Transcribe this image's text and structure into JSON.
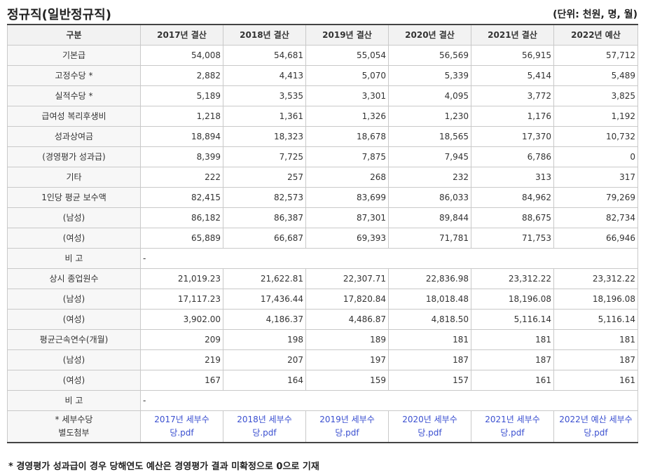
{
  "header": {
    "title": "정규직(일반정규직)",
    "unit": "(단위: 천원, 명, 월)"
  },
  "table": {
    "columns": [
      "구분",
      "2017년 결산",
      "2018년 결산",
      "2019년 결산",
      "2020년 결산",
      "2021년 결산",
      "2022년 예산"
    ],
    "rows": [
      {
        "label": "기본급",
        "values": [
          "54,008",
          "54,681",
          "55,054",
          "56,569",
          "56,915",
          "57,712"
        ]
      },
      {
        "label": "고정수당 *",
        "values": [
          "2,882",
          "4,413",
          "5,070",
          "5,339",
          "5,414",
          "5,489"
        ]
      },
      {
        "label": "실적수당 *",
        "values": [
          "5,189",
          "3,535",
          "3,301",
          "4,095",
          "3,772",
          "3,825"
        ]
      },
      {
        "label": "급여성 복리후생비",
        "values": [
          "1,218",
          "1,361",
          "1,326",
          "1,230",
          "1,176",
          "1,192"
        ]
      },
      {
        "label": "성과상여금",
        "values": [
          "18,894",
          "18,323",
          "18,678",
          "18,565",
          "17,370",
          "10,732"
        ]
      },
      {
        "label": "(경영평가 성과급)",
        "values": [
          "8,399",
          "7,725",
          "7,875",
          "7,945",
          "6,786",
          "0"
        ]
      },
      {
        "label": "기타",
        "values": [
          "222",
          "257",
          "268",
          "232",
          "313",
          "317"
        ]
      },
      {
        "label": "1인당 평균 보수액",
        "values": [
          "82,415",
          "82,573",
          "83,699",
          "86,033",
          "84,962",
          "79,269"
        ]
      },
      {
        "label": "(남성)",
        "values": [
          "86,182",
          "86,387",
          "87,301",
          "89,844",
          "88,675",
          "82,734"
        ]
      },
      {
        "label": "(여성)",
        "values": [
          "65,889",
          "66,687",
          "69,393",
          "71,781",
          "71,753",
          "66,946"
        ]
      }
    ],
    "remark_1": {
      "label": "비 고",
      "text": "-"
    },
    "rows2": [
      {
        "label": "상시 종업원수",
        "values": [
          "21,019.23",
          "21,622.81",
          "22,307.71",
          "22,836.98",
          "23,312.22",
          "23,312.22"
        ]
      },
      {
        "label": "(남성)",
        "values": [
          "17,117.23",
          "17,436.44",
          "17,820.84",
          "18,018.48",
          "18,196.08",
          "18,196.08"
        ]
      },
      {
        "label": "(여성)",
        "values": [
          "3,902.00",
          "4,186.37",
          "4,486.87",
          "4,818.50",
          "5,116.14",
          "5,116.14"
        ]
      },
      {
        "label": "평균근속연수(개월)",
        "values": [
          "209",
          "198",
          "189",
          "181",
          "181",
          "181"
        ]
      },
      {
        "label": "(남성)",
        "values": [
          "219",
          "207",
          "197",
          "187",
          "187",
          "187"
        ]
      },
      {
        "label": "(여성)",
        "values": [
          "167",
          "164",
          "159",
          "157",
          "161",
          "161"
        ]
      }
    ],
    "remark_2": {
      "label": "비 고",
      "text": "-"
    },
    "attachments": {
      "label_line1": "* 세부수당",
      "label_line2": "별도첨부",
      "files": [
        "2017년 세부수당.pdf",
        "2018년 세부수당.pdf",
        "2019년 세부수당.pdf",
        "2020년 세부수당.pdf",
        "2021년 세부수당.pdf",
        "2022년 예산 세부수당.pdf"
      ]
    }
  },
  "footnote": "* 경영평가 성과급이 경우 당해연도 예산은 경영평가 결과 미확정으로 0으로 기재"
}
